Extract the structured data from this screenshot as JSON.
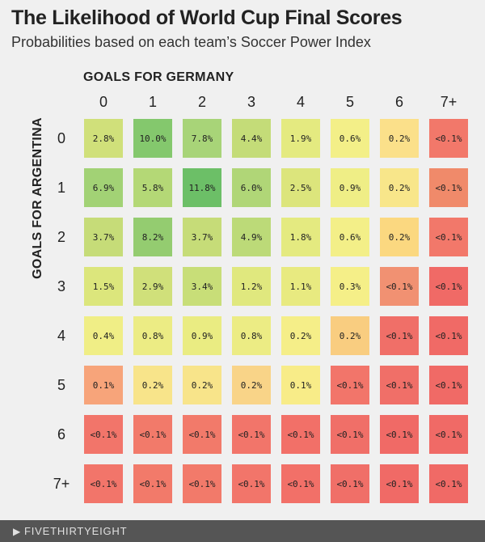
{
  "chart_data": {
    "type": "heatmap",
    "title": "The Likelihood of World Cup Final Scores",
    "subtitle": "Probabilities based on each team’s Soccer Power Index",
    "xlabel": "GOALS FOR GERMANY",
    "ylabel": "GOALS FOR ARGENTINA",
    "x_categories": [
      "0",
      "1",
      "2",
      "3",
      "4",
      "5",
      "6",
      "7+"
    ],
    "y_categories": [
      "0",
      "1",
      "2",
      "3",
      "4",
      "5",
      "6",
      "7+"
    ],
    "values": [
      [
        "2.8%",
        "10.0%",
        "7.8%",
        "4.4%",
        "1.9%",
        "0.6%",
        "0.2%",
        "<0.1%"
      ],
      [
        "6.9%",
        "5.8%",
        "11.8%",
        "6.0%",
        "2.5%",
        "0.9%",
        "0.2%",
        "<0.1%"
      ],
      [
        "3.7%",
        "8.2%",
        "3.7%",
        "4.9%",
        "1.8%",
        "0.6%",
        "0.2%",
        "<0.1%"
      ],
      [
        "1.5%",
        "2.9%",
        "3.4%",
        "1.2%",
        "1.1%",
        "0.3%",
        "<0.1%",
        "<0.1%"
      ],
      [
        "0.4%",
        "0.8%",
        "0.9%",
        "0.8%",
        "0.2%",
        "0.2%",
        "<0.1%",
        "<0.1%"
      ],
      [
        "0.1%",
        "0.2%",
        "0.2%",
        "0.2%",
        "0.1%",
        "<0.1%",
        "<0.1%",
        "<0.1%"
      ],
      [
        "<0.1%",
        "<0.1%",
        "<0.1%",
        "<0.1%",
        "<0.1%",
        "<0.1%",
        "<0.1%",
        "<0.1%"
      ],
      [
        "<0.1%",
        "<0.1%",
        "<0.1%",
        "<0.1%",
        "<0.1%",
        "<0.1%",
        "<0.1%",
        "<0.1%"
      ]
    ],
    "colors": [
      [
        "#d0e07a",
        "#84c86d",
        "#a8d478",
        "#c4dc78",
        "#e4ea80",
        "#f3ef88",
        "#fbe08a",
        "#f2786a"
      ],
      [
        "#a2d275",
        "#b4d876",
        "#6cbf67",
        "#b0d677",
        "#dce57c",
        "#efee86",
        "#f8e68a",
        "#f08a6a"
      ],
      [
        "#c6dc78",
        "#94cc70",
        "#c6dc78",
        "#bcda78",
        "#e4ea80",
        "#f3ef88",
        "#fbd880",
        "#f2786a"
      ],
      [
        "#dce67c",
        "#d0e07a",
        "#c8de78",
        "#e0e87e",
        "#e8ea80",
        "#f5ef88",
        "#f19172",
        "#f06a66"
      ],
      [
        "#f0ee86",
        "#ecec84",
        "#eaec82",
        "#ecec84",
        "#f5ee88",
        "#f9cd80",
        "#f06f68",
        "#f06a66"
      ],
      [
        "#f7a47a",
        "#f8e48a",
        "#f8e48a",
        "#f9d488",
        "#f8ec88",
        "#f2756a",
        "#f06f68",
        "#f06a66"
      ],
      [
        "#f2756a",
        "#f27a6a",
        "#f27a6a",
        "#f2756a",
        "#f27068",
        "#f06f68",
        "#f06a66",
        "#f06a66"
      ],
      [
        "#f2756a",
        "#f27a6a",
        "#f27a6a",
        "#f2756a",
        "#f27068",
        "#f06f68",
        "#f06a66",
        "#f06a66"
      ]
    ]
  },
  "footer": {
    "brand": "FIVETHIRTYEIGHT",
    "brand_icon": "fivethirtyeight-logo-icon"
  }
}
